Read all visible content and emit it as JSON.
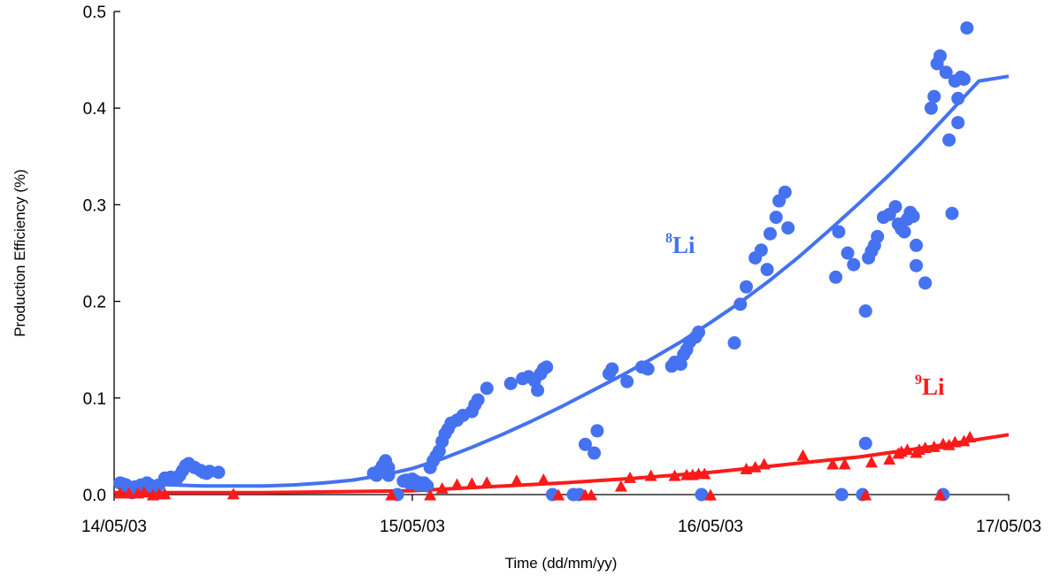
{
  "chart_data": {
    "type": "scatter",
    "xlabel": "Time (dd/mm/yy)",
    "ylabel": "Production Efficiency (%)",
    "xlim": [
      0,
      3
    ],
    "ylim": [
      0,
      0.5
    ],
    "x_ticks": [
      {
        "value": 0,
        "label": "14/05/03"
      },
      {
        "value": 1,
        "label": "15/05/03"
      },
      {
        "value": 2,
        "label": "16/05/03"
      },
      {
        "value": 3,
        "label": "17/05/03"
      }
    ],
    "y_ticks": [
      {
        "value": 0,
        "label": "0.0"
      },
      {
        "value": 0.1,
        "label": "0.1"
      },
      {
        "value": 0.2,
        "label": "0.2"
      },
      {
        "value": 0.3,
        "label": "0.3"
      },
      {
        "value": 0.4,
        "label": "0.4"
      },
      {
        "value": 0.5,
        "label": "0.5"
      }
    ],
    "grid": false,
    "series": [
      {
        "name": "8Li",
        "label_mass": "8",
        "label_element": "Li",
        "color": "#4472f0",
        "marker": "circle",
        "points": [
          [
            0.02,
            0.012
          ],
          [
            0.03,
            0.011
          ],
          [
            0.04,
            0.01
          ],
          [
            0.06,
            0.002
          ],
          [
            0.07,
            0.008
          ],
          [
            0.09,
            0.01
          ],
          [
            0.11,
            0.012
          ],
          [
            0.12,
            0.01
          ],
          [
            0.13,
            0.008
          ],
          [
            0.15,
            0.01
          ],
          [
            0.17,
            0.017
          ],
          [
            0.19,
            0.018
          ],
          [
            0.21,
            0.016
          ],
          [
            0.22,
            0.02
          ],
          [
            0.23,
            0.025
          ],
          [
            0.24,
            0.03
          ],
          [
            0.25,
            0.032
          ],
          [
            0.27,
            0.028
          ],
          [
            0.29,
            0.025
          ],
          [
            0.3,
            0.023
          ],
          [
            0.31,
            0.022
          ],
          [
            0.32,
            0.024
          ],
          [
            0.35,
            0.023
          ],
          [
            0.87,
            0.022
          ],
          [
            0.88,
            0.02
          ],
          [
            0.89,
            0.025
          ],
          [
            0.9,
            0.03
          ],
          [
            0.91,
            0.035
          ],
          [
            0.92,
            0.028
          ],
          [
            0.92,
            0.02
          ],
          [
            0.97,
            0.014
          ],
          [
            0.98,
            0.015
          ],
          [
            0.99,
            0.012
          ],
          [
            1.0,
            0.016
          ],
          [
            1.01,
            0.014
          ],
          [
            1.02,
            0.01
          ],
          [
            1.03,
            0.012
          ],
          [
            1.04,
            0.012
          ],
          [
            1.05,
            0.009
          ],
          [
            0.95,
            0.0
          ],
          [
            1.06,
            0.028
          ],
          [
            1.07,
            0.035
          ],
          [
            1.08,
            0.04
          ],
          [
            1.09,
            0.045
          ],
          [
            1.1,
            0.055
          ],
          [
            1.11,
            0.063
          ],
          [
            1.12,
            0.068
          ],
          [
            1.13,
            0.074
          ],
          [
            1.15,
            0.077
          ],
          [
            1.17,
            0.082
          ],
          [
            1.2,
            0.086
          ],
          [
            1.21,
            0.093
          ],
          [
            1.22,
            0.098
          ],
          [
            1.25,
            0.11
          ],
          [
            1.33,
            0.115
          ],
          [
            1.37,
            0.12
          ],
          [
            1.39,
            0.122
          ],
          [
            1.41,
            0.118
          ],
          [
            1.42,
            0.108
          ],
          [
            1.43,
            0.125
          ],
          [
            1.44,
            0.13
          ],
          [
            1.45,
            0.132
          ],
          [
            1.47,
            0.0
          ],
          [
            1.54,
            0.0
          ],
          [
            1.56,
            0.0
          ],
          [
            1.58,
            0.052
          ],
          [
            1.61,
            0.043
          ],
          [
            1.62,
            0.066
          ],
          [
            1.66,
            0.125
          ],
          [
            1.67,
            0.13
          ],
          [
            1.72,
            0.117
          ],
          [
            1.77,
            0.132
          ],
          [
            1.79,
            0.13
          ],
          [
            1.87,
            0.133
          ],
          [
            1.88,
            0.137
          ],
          [
            1.9,
            0.135
          ],
          [
            1.91,
            0.145
          ],
          [
            1.92,
            0.15
          ],
          [
            1.93,
            0.158
          ],
          [
            1.95,
            0.163
          ],
          [
            1.96,
            0.168
          ],
          [
            1.97,
            0.0
          ],
          [
            2.08,
            0.157
          ],
          [
            2.1,
            0.197
          ],
          [
            2.12,
            0.215
          ],
          [
            2.15,
            0.245
          ],
          [
            2.17,
            0.253
          ],
          [
            2.19,
            0.233
          ],
          [
            2.2,
            0.27
          ],
          [
            2.22,
            0.287
          ],
          [
            2.23,
            0.304
          ],
          [
            2.25,
            0.313
          ],
          [
            2.26,
            0.276
          ],
          [
            2.42,
            0.225
          ],
          [
            2.43,
            0.272
          ],
          [
            2.44,
            0.0
          ],
          [
            2.46,
            0.25
          ],
          [
            2.48,
            0.238
          ],
          [
            2.51,
            0.0
          ],
          [
            2.52,
            0.053
          ],
          [
            2.52,
            0.19
          ],
          [
            2.53,
            0.245
          ],
          [
            2.54,
            0.252
          ],
          [
            2.55,
            0.258
          ],
          [
            2.56,
            0.267
          ],
          [
            2.58,
            0.287
          ],
          [
            2.6,
            0.29
          ],
          [
            2.62,
            0.298
          ],
          [
            2.63,
            0.28
          ],
          [
            2.64,
            0.275
          ],
          [
            2.65,
            0.272
          ],
          [
            2.66,
            0.285
          ],
          [
            2.67,
            0.292
          ],
          [
            2.68,
            0.288
          ],
          [
            2.69,
            0.258
          ],
          [
            2.69,
            0.237
          ],
          [
            2.72,
            0.219
          ],
          [
            2.74,
            0.4
          ],
          [
            2.75,
            0.412
          ],
          [
            2.76,
            0.446
          ],
          [
            2.77,
            0.454
          ],
          [
            2.78,
            0.0
          ],
          [
            2.79,
            0.437
          ],
          [
            2.8,
            0.367
          ],
          [
            2.81,
            0.291
          ],
          [
            2.82,
            0.428
          ],
          [
            2.83,
            0.41
          ],
          [
            2.83,
            0.385
          ],
          [
            2.84,
            0.432
          ],
          [
            2.85,
            0.43
          ],
          [
            2.86,
            0.483
          ]
        ],
        "fit": [
          [
            0,
            0.013
          ],
          [
            0.1,
            0.011
          ],
          [
            0.2,
            0.01
          ],
          [
            0.3,
            0.009
          ],
          [
            0.4,
            0.009
          ],
          [
            0.5,
            0.009
          ],
          [
            0.6,
            0.01
          ],
          [
            0.7,
            0.012
          ],
          [
            0.8,
            0.015
          ],
          [
            0.9,
            0.02
          ],
          [
            1.0,
            0.027
          ],
          [
            1.1,
            0.037
          ],
          [
            1.2,
            0.049
          ],
          [
            1.3,
            0.062
          ],
          [
            1.4,
            0.076
          ],
          [
            1.5,
            0.091
          ],
          [
            1.6,
            0.107
          ],
          [
            1.7,
            0.123
          ],
          [
            1.8,
            0.14
          ],
          [
            1.9,
            0.158
          ],
          [
            2.0,
            0.178
          ],
          [
            2.1,
            0.199
          ],
          [
            2.2,
            0.222
          ],
          [
            2.3,
            0.247
          ],
          [
            2.4,
            0.274
          ],
          [
            2.5,
            0.302
          ],
          [
            2.6,
            0.331
          ],
          [
            2.7,
            0.362
          ],
          [
            2.8,
            0.395
          ],
          [
            2.9,
            0.428
          ],
          [
            3.0,
            0.433
          ]
        ]
      },
      {
        "name": "9Li",
        "label_mass": "9",
        "label_element": "Li",
        "color": "#ff1a1a",
        "marker": "triangle",
        "points": [
          [
            0.02,
            0.002
          ],
          [
            0.05,
            0.002
          ],
          [
            0.08,
            0.002
          ],
          [
            0.1,
            0.003
          ],
          [
            0.13,
            0.0
          ],
          [
            0.15,
            0.001
          ],
          [
            0.17,
            0.001
          ],
          [
            0.4,
            0.001
          ],
          [
            0.93,
            0.0
          ],
          [
            1.06,
            0.0
          ],
          [
            1.1,
            0.007
          ],
          [
            1.15,
            0.011
          ],
          [
            1.2,
            0.012
          ],
          [
            1.25,
            0.013
          ],
          [
            1.35,
            0.015
          ],
          [
            1.44,
            0.016
          ],
          [
            1.49,
            0.0
          ],
          [
            1.58,
            0.0
          ],
          [
            1.6,
            0.0
          ],
          [
            1.7,
            0.009
          ],
          [
            1.73,
            0.018
          ],
          [
            1.8,
            0.02
          ],
          [
            1.88,
            0.02
          ],
          [
            1.92,
            0.021
          ],
          [
            1.94,
            0.021
          ],
          [
            1.96,
            0.022
          ],
          [
            1.98,
            0.022
          ],
          [
            2.0,
            0.0
          ],
          [
            2.12,
            0.027
          ],
          [
            2.15,
            0.029
          ],
          [
            2.18,
            0.032
          ],
          [
            2.31,
            0.041
          ],
          [
            2.41,
            0.032
          ],
          [
            2.45,
            0.032
          ],
          [
            2.52,
            0.0
          ],
          [
            2.54,
            0.034
          ],
          [
            2.6,
            0.037
          ],
          [
            2.63,
            0.043
          ],
          [
            2.64,
            0.045
          ],
          [
            2.66,
            0.047
          ],
          [
            2.69,
            0.044
          ],
          [
            2.7,
            0.047
          ],
          [
            2.72,
            0.049
          ],
          [
            2.75,
            0.05
          ],
          [
            2.77,
            0.0
          ],
          [
            2.78,
            0.053
          ],
          [
            2.8,
            0.052
          ],
          [
            2.82,
            0.055
          ],
          [
            2.85,
            0.056
          ],
          [
            2.87,
            0.06
          ]
        ],
        "fit": [
          [
            0,
            0.002
          ],
          [
            0.25,
            0.002
          ],
          [
            0.5,
            0.002
          ],
          [
            0.75,
            0.003
          ],
          [
            1.0,
            0.004
          ],
          [
            1.25,
            0.008
          ],
          [
            1.5,
            0.012
          ],
          [
            1.75,
            0.017
          ],
          [
            2.0,
            0.023
          ],
          [
            2.25,
            0.031
          ],
          [
            2.5,
            0.039
          ],
          [
            2.75,
            0.05
          ],
          [
            3.0,
            0.062
          ]
        ]
      }
    ]
  }
}
